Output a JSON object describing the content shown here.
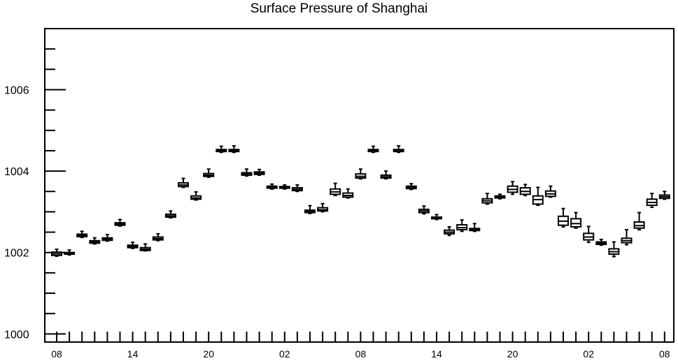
{
  "chart_data": {
    "type": "boxplot",
    "title": "Surface Pressure of Shanghai",
    "xlabel": "",
    "ylabel": "",
    "ylim": [
      999.8,
      1007.5
    ],
    "yticks": [
      1000,
      1002,
      1004,
      1006
    ],
    "ytick_labels": [
      "1000",
      "1002",
      "1004",
      "1006"
    ],
    "xtick_labels": [
      "08",
      "14",
      "20",
      "02",
      "08",
      "14",
      "20",
      "02",
      "08"
    ],
    "xtick_positions": [
      0,
      6,
      12,
      18,
      24,
      30,
      36,
      42,
      48
    ],
    "grid": false,
    "boxes": [
      {
        "x": 0,
        "min": 1001.91,
        "q1": 1001.93,
        "median": 1001.97,
        "q3": 1002.01,
        "max": 1002.08
      },
      {
        "x": 1,
        "min": 1001.94,
        "q1": 1001.96,
        "median": 1001.98,
        "q3": 1002.0,
        "max": 1002.06
      },
      {
        "x": 2,
        "min": 1002.37,
        "q1": 1002.39,
        "median": 1002.42,
        "q3": 1002.45,
        "max": 1002.52
      },
      {
        "x": 3,
        "min": 1002.21,
        "q1": 1002.23,
        "median": 1002.26,
        "q3": 1002.29,
        "max": 1002.36
      },
      {
        "x": 4,
        "min": 1002.28,
        "q1": 1002.3,
        "median": 1002.33,
        "q3": 1002.36,
        "max": 1002.44
      },
      {
        "x": 5,
        "min": 1002.65,
        "q1": 1002.67,
        "median": 1002.7,
        "q3": 1002.73,
        "max": 1002.81
      },
      {
        "x": 6,
        "min": 1002.1,
        "q1": 1002.12,
        "median": 1002.15,
        "q3": 1002.18,
        "max": 1002.25
      },
      {
        "x": 7,
        "min": 1002.04,
        "q1": 1002.05,
        "median": 1002.08,
        "q3": 1002.12,
        "max": 1002.21
      },
      {
        "x": 8,
        "min": 1002.29,
        "q1": 1002.31,
        "median": 1002.34,
        "q3": 1002.38,
        "max": 1002.46
      },
      {
        "x": 9,
        "min": 1002.85,
        "q1": 1002.87,
        "median": 1002.9,
        "q3": 1002.94,
        "max": 1003.02
      },
      {
        "x": 10,
        "min": 1003.6,
        "q1": 1003.62,
        "median": 1003.66,
        "q3": 1003.71,
        "max": 1003.82
      },
      {
        "x": 11,
        "min": 1003.29,
        "q1": 1003.31,
        "median": 1003.34,
        "q3": 1003.39,
        "max": 1003.49
      },
      {
        "x": 12,
        "min": 1003.85,
        "q1": 1003.87,
        "median": 1003.9,
        "q3": 1003.94,
        "max": 1004.05
      },
      {
        "x": 13,
        "min": 1004.46,
        "q1": 1004.48,
        "median": 1004.5,
        "q3": 1004.53,
        "max": 1004.61
      },
      {
        "x": 14,
        "min": 1004.46,
        "q1": 1004.48,
        "median": 1004.5,
        "q3": 1004.53,
        "max": 1004.62
      },
      {
        "x": 15,
        "min": 1003.88,
        "q1": 1003.9,
        "median": 1003.93,
        "q3": 1003.96,
        "max": 1004.05
      },
      {
        "x": 16,
        "min": 1003.9,
        "q1": 1003.92,
        "median": 1003.95,
        "q3": 1003.98,
        "max": 1004.04
      },
      {
        "x": 17,
        "min": 1003.56,
        "q1": 1003.58,
        "median": 1003.61,
        "q3": 1003.63,
        "max": 1003.68
      },
      {
        "x": 18,
        "min": 1003.56,
        "q1": 1003.58,
        "median": 1003.6,
        "q3": 1003.62,
        "max": 1003.66
      },
      {
        "x": 19,
        "min": 1003.5,
        "q1": 1003.52,
        "median": 1003.55,
        "q3": 1003.59,
        "max": 1003.66
      },
      {
        "x": 20,
        "min": 1002.96,
        "q1": 1002.98,
        "median": 1003.01,
        "q3": 1003.04,
        "max": 1003.15
      },
      {
        "x": 21,
        "min": 1003.0,
        "q1": 1003.02,
        "median": 1003.05,
        "q3": 1003.1,
        "max": 1003.2
      },
      {
        "x": 22,
        "min": 1003.4,
        "q1": 1003.43,
        "median": 1003.49,
        "q3": 1003.56,
        "max": 1003.7
      },
      {
        "x": 23,
        "min": 1003.34,
        "q1": 1003.36,
        "median": 1003.4,
        "q3": 1003.46,
        "max": 1003.56
      },
      {
        "x": 24,
        "min": 1003.81,
        "q1": 1003.83,
        "median": 1003.87,
        "q3": 1003.93,
        "max": 1004.05
      },
      {
        "x": 25,
        "min": 1004.46,
        "q1": 1004.48,
        "median": 1004.5,
        "q3": 1004.53,
        "max": 1004.61
      },
      {
        "x": 26,
        "min": 1003.81,
        "q1": 1003.83,
        "median": 1003.86,
        "q3": 1003.9,
        "max": 1004.0
      },
      {
        "x": 27,
        "min": 1004.46,
        "q1": 1004.48,
        "median": 1004.5,
        "q3": 1004.53,
        "max": 1004.62
      },
      {
        "x": 28,
        "min": 1003.55,
        "q1": 1003.57,
        "median": 1003.6,
        "q3": 1003.63,
        "max": 1003.69
      },
      {
        "x": 29,
        "min": 1002.95,
        "q1": 1002.98,
        "median": 1003.02,
        "q3": 1003.06,
        "max": 1003.14
      },
      {
        "x": 30,
        "min": 1002.81,
        "q1": 1002.83,
        "median": 1002.85,
        "q3": 1002.87,
        "max": 1002.93
      },
      {
        "x": 31,
        "min": 1002.42,
        "q1": 1002.46,
        "median": 1002.5,
        "q3": 1002.55,
        "max": 1002.63
      },
      {
        "x": 32,
        "min": 1002.52,
        "q1": 1002.56,
        "median": 1002.61,
        "q3": 1002.68,
        "max": 1002.8
      },
      {
        "x": 33,
        "min": 1002.52,
        "q1": 1002.54,
        "median": 1002.57,
        "q3": 1002.59,
        "max": 1002.71
      },
      {
        "x": 34,
        "min": 1003.19,
        "q1": 1003.22,
        "median": 1003.27,
        "q3": 1003.32,
        "max": 1003.45
      },
      {
        "x": 35,
        "min": 1003.32,
        "q1": 1003.34,
        "median": 1003.37,
        "q3": 1003.39,
        "max": 1003.43
      },
      {
        "x": 36,
        "min": 1003.43,
        "q1": 1003.48,
        "median": 1003.55,
        "q3": 1003.63,
        "max": 1003.74
      },
      {
        "x": 37,
        "min": 1003.4,
        "q1": 1003.43,
        "median": 1003.5,
        "q3": 1003.59,
        "max": 1003.67
      },
      {
        "x": 38,
        "min": 1003.16,
        "q1": 1003.19,
        "median": 1003.3,
        "q3": 1003.39,
        "max": 1003.6
      },
      {
        "x": 39,
        "min": 1003.36,
        "q1": 1003.38,
        "median": 1003.44,
        "q3": 1003.51,
        "max": 1003.63
      },
      {
        "x": 40,
        "min": 1002.63,
        "q1": 1002.67,
        "median": 1002.77,
        "q3": 1002.89,
        "max": 1003.08
      },
      {
        "x": 41,
        "min": 1002.6,
        "q1": 1002.63,
        "median": 1002.71,
        "q3": 1002.83,
        "max": 1002.98
      },
      {
        "x": 42,
        "min": 1002.25,
        "q1": 1002.31,
        "median": 1002.38,
        "q3": 1002.47,
        "max": 1002.64
      },
      {
        "x": 43,
        "min": 1002.18,
        "q1": 1002.2,
        "median": 1002.23,
        "q3": 1002.26,
        "max": 1002.32
      },
      {
        "x": 44,
        "min": 1001.9,
        "q1": 1001.96,
        "median": 1002.02,
        "q3": 1002.09,
        "max": 1002.26
      },
      {
        "x": 45,
        "min": 1002.19,
        "q1": 1002.24,
        "median": 1002.29,
        "q3": 1002.35,
        "max": 1002.56
      },
      {
        "x": 46,
        "min": 1002.56,
        "q1": 1002.6,
        "median": 1002.66,
        "q3": 1002.75,
        "max": 1002.98
      },
      {
        "x": 47,
        "min": 1003.11,
        "q1": 1003.16,
        "median": 1003.23,
        "q3": 1003.31,
        "max": 1003.45
      },
      {
        "x": 48,
        "min": 1003.31,
        "q1": 1003.33,
        "median": 1003.37,
        "q3": 1003.41,
        "max": 1003.5
      }
    ]
  }
}
